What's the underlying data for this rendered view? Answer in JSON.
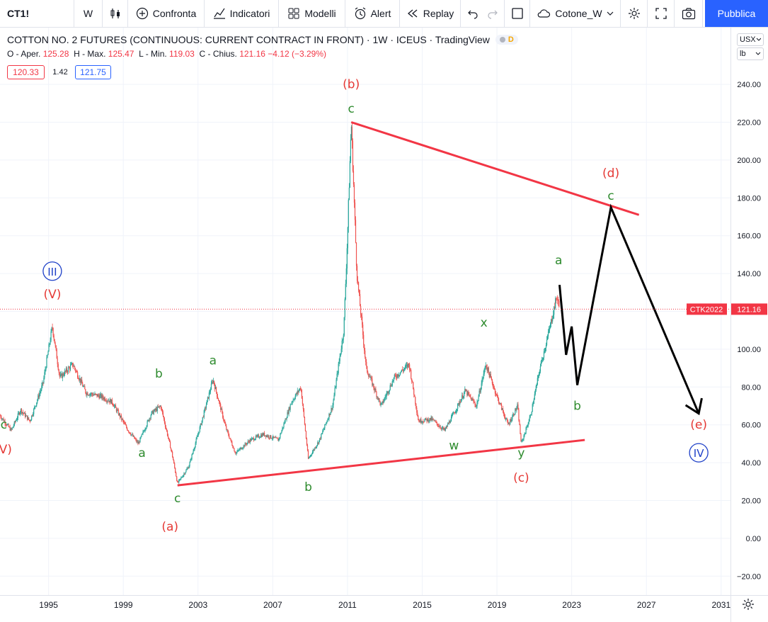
{
  "toolbar": {
    "symbol": "CT1!",
    "interval": "W",
    "compare": "Confronta",
    "indicators": "Indicatori",
    "templates": "Modelli",
    "alert": "Alert",
    "replay": "Replay",
    "layout_name": "Cotone_W",
    "publish": "Pubblica"
  },
  "legend": {
    "title": "COTTON NO. 2 FUTURES (CONTINUOUS: CURRENT CONTRACT IN FRONT) · 1W · ICEUS · TradingView",
    "badge_d": "D",
    "o_label": "O - Aper.",
    "o_value": "125.28",
    "h_label": "H - Max.",
    "h_value": "125.47",
    "l_label": "L - Min.",
    "l_value": "119.03",
    "c_label": "C - Chius.",
    "c_value": "121.16",
    "change": "−4.12 (−3.29%)",
    "bid": "120.33",
    "spread": "1.42",
    "ask": "121.75"
  },
  "scale": {
    "currency": "USX",
    "unit": "lb"
  },
  "last_price": {
    "tag": "CTK2022",
    "value": "121.16",
    "level": 121.16
  },
  "colors": {
    "up": "#26a69a",
    "down": "#ef5350",
    "trend": "#f23645",
    "label_red": "#e53935",
    "label_green": "#2e8b2e",
    "label_blue": "#1e40c8",
    "publish": "#2962ff"
  },
  "chart_data": {
    "type": "candlestick",
    "y_ticks": [
      240,
      220,
      200,
      180,
      160,
      140,
      120,
      100,
      80,
      60,
      40,
      20,
      0,
      -20
    ],
    "y_tick_labels": [
      "240.00",
      "220.00",
      "200.00",
      "180.00",
      "160.00",
      "140.00",
      "120.00",
      "100.00",
      "80.00",
      "60.00",
      "40.00",
      "20.00",
      "0.00",
      "−20.00"
    ],
    "x_ticks": [
      1995,
      1999,
      2003,
      2007,
      2011,
      2015,
      2019,
      2023,
      2027,
      2031
    ],
    "x_tick_labels": [
      "1995",
      "1999",
      "2003",
      "2007",
      "2011",
      "2015",
      "2019",
      "2023",
      "2027",
      "2031"
    ],
    "x_range": [
      1992.4,
      2031.5
    ],
    "y_range": [
      -30,
      270
    ],
    "price_path": [
      [
        1992.4,
        65
      ],
      [
        1993.0,
        57
      ],
      [
        1993.5,
        68
      ],
      [
        1994.0,
        62
      ],
      [
        1994.7,
        82
      ],
      [
        1995.2,
        112
      ],
      [
        1995.6,
        85
      ],
      [
        1996.3,
        92
      ],
      [
        1997.0,
        77
      ],
      [
        1997.8,
        75
      ],
      [
        1998.4,
        72
      ],
      [
        1999.2,
        58
      ],
      [
        1999.8,
        50
      ],
      [
        2000.5,
        66
      ],
      [
        2001.0,
        70
      ],
      [
        2001.6,
        45
      ],
      [
        2001.9,
        29
      ],
      [
        2002.5,
        38
      ],
      [
        2003.2,
        62
      ],
      [
        2003.8,
        84
      ],
      [
        2004.5,
        58
      ],
      [
        2005.0,
        45
      ],
      [
        2005.8,
        52
      ],
      [
        2006.5,
        55
      ],
      [
        2007.3,
        52
      ],
      [
        2008.0,
        72
      ],
      [
        2008.5,
        80
      ],
      [
        2008.9,
        42
      ],
      [
        2009.5,
        52
      ],
      [
        2010.2,
        70
      ],
      [
        2010.8,
        110
      ],
      [
        2011.0,
        160
      ],
      [
        2011.2,
        220
      ],
      [
        2011.5,
        140
      ],
      [
        2012.0,
        90
      ],
      [
        2012.8,
        70
      ],
      [
        2013.5,
        85
      ],
      [
        2014.3,
        92
      ],
      [
        2014.8,
        62
      ],
      [
        2015.5,
        63
      ],
      [
        2016.2,
        57
      ],
      [
        2016.8,
        68
      ],
      [
        2017.3,
        78
      ],
      [
        2017.9,
        70
      ],
      [
        2018.4,
        92
      ],
      [
        2019.0,
        75
      ],
      [
        2019.6,
        60
      ],
      [
        2020.1,
        70
      ],
      [
        2020.3,
        50
      ],
      [
        2020.8,
        65
      ],
      [
        2021.3,
        90
      ],
      [
        2021.8,
        110
      ],
      [
        2022.2,
        128
      ],
      [
        2022.35,
        121
      ]
    ],
    "annotations": [
      {
        "text": "c",
        "x": 1992.6,
        "y": 58,
        "color": "green"
      },
      {
        "text": "IV)",
        "x": 1992.6,
        "y": 45,
        "color": "red"
      },
      {
        "text": "III",
        "x": 1995.2,
        "y": 139,
        "color": "blue",
        "circle": true
      },
      {
        "text": "(V)",
        "x": 1995.2,
        "y": 127,
        "color": "red"
      },
      {
        "text": "a",
        "x": 2000.0,
        "y": 43,
        "color": "green"
      },
      {
        "text": "b",
        "x": 2000.9,
        "y": 85,
        "color": "green"
      },
      {
        "text": "a",
        "x": 2003.8,
        "y": 92,
        "color": "green"
      },
      {
        "text": "c",
        "x": 2001.9,
        "y": 19,
        "color": "green"
      },
      {
        "text": "(a)",
        "x": 2001.5,
        "y": 4,
        "color": "red"
      },
      {
        "text": "b",
        "x": 2008.9,
        "y": 25,
        "color": "green"
      },
      {
        "text": "(b)",
        "x": 2011.2,
        "y": 238,
        "color": "red"
      },
      {
        "text": "c",
        "x": 2011.2,
        "y": 225,
        "color": "green"
      },
      {
        "text": "w",
        "x": 2016.7,
        "y": 47,
        "color": "green"
      },
      {
        "text": "x",
        "x": 2018.3,
        "y": 112,
        "color": "green"
      },
      {
        "text": "y",
        "x": 2020.3,
        "y": 43,
        "color": "green"
      },
      {
        "text": "(c)",
        "x": 2020.3,
        "y": 30,
        "color": "red"
      },
      {
        "text": "a",
        "x": 2022.3,
        "y": 145,
        "color": "green"
      },
      {
        "text": "b",
        "x": 2023.3,
        "y": 68,
        "color": "green"
      },
      {
        "text": "(d)",
        "x": 2025.1,
        "y": 191,
        "color": "red"
      },
      {
        "text": "c",
        "x": 2025.1,
        "y": 179,
        "color": "green"
      },
      {
        "text": "(e)",
        "x": 2029.8,
        "y": 58,
        "color": "red"
      },
      {
        "text": "IV",
        "x": 2029.8,
        "y": 43,
        "color": "blue",
        "circle": true
      }
    ],
    "trend_lines": [
      {
        "from": [
          2011.2,
          220
        ],
        "to": [
          2026.6,
          171
        ]
      },
      {
        "from": [
          2001.9,
          28
        ],
        "to": [
          2023.7,
          52
        ]
      }
    ],
    "forecast_path": [
      [
        2022.35,
        134
      ],
      [
        2022.7,
        97
      ],
      [
        2023.0,
        112
      ],
      [
        2023.3,
        81
      ],
      [
        2025.1,
        175
      ],
      [
        2029.8,
        66
      ]
    ]
  }
}
